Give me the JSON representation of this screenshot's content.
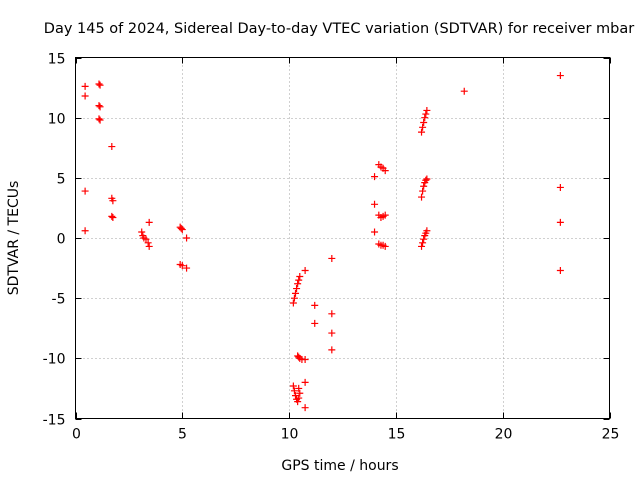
{
  "chart_data": {
    "type": "scatter",
    "title": "Day 145 of 2024, Sidereal Day-to-day VTEC variation (SDTVAR) for receiver mbar",
    "xlabel": "GPS time / hours",
    "ylabel": "SDTVAR / TECUs",
    "xlim": [
      0,
      25
    ],
    "ylim": [
      -15,
      15
    ],
    "xticks": [
      0,
      5,
      10,
      15,
      20,
      25
    ],
    "yticks": [
      -15,
      -10,
      -5,
      0,
      5,
      10,
      15
    ],
    "xtick_labels": [
      "0",
      "5",
      "10",
      "15",
      "20",
      "25"
    ],
    "ytick_labels": [
      "-15",
      "-10",
      "-5",
      "0",
      "5",
      "10",
      "15"
    ],
    "grid": true,
    "marker": "+",
    "color": "#ff0000",
    "series": [
      {
        "name": "SDTVAR",
        "points": [
          [
            0.45,
            12.6
          ],
          [
            0.45,
            11.8
          ],
          [
            0.45,
            3.9
          ],
          [
            0.45,
            0.6
          ],
          [
            1.1,
            12.8
          ],
          [
            1.15,
            12.7
          ],
          [
            1.1,
            11.0
          ],
          [
            1.15,
            10.9
          ],
          [
            1.1,
            9.9
          ],
          [
            1.15,
            9.8
          ],
          [
            1.7,
            7.6
          ],
          [
            1.7,
            3.3
          ],
          [
            1.75,
            3.1
          ],
          [
            1.7,
            1.8
          ],
          [
            1.75,
            1.7
          ],
          [
            3.1,
            0.5
          ],
          [
            3.15,
            0.2
          ],
          [
            3.2,
            0.0
          ],
          [
            3.3,
            -0.1
          ],
          [
            3.4,
            -0.4
          ],
          [
            3.45,
            1.3
          ],
          [
            3.45,
            -0.7
          ],
          [
            4.9,
            0.9
          ],
          [
            4.95,
            0.8
          ],
          [
            5.0,
            0.7
          ],
          [
            4.9,
            -2.2
          ],
          [
            5.0,
            -2.3
          ],
          [
            5.2,
            0.0
          ],
          [
            5.2,
            -2.5
          ],
          [
            10.2,
            -5.4
          ],
          [
            10.25,
            -5.0
          ],
          [
            10.3,
            -4.6
          ],
          [
            10.35,
            -4.2
          ],
          [
            10.4,
            -3.8
          ],
          [
            10.45,
            -3.5
          ],
          [
            10.5,
            -3.2
          ],
          [
            10.75,
            -2.7
          ],
          [
            10.4,
            -9.8
          ],
          [
            10.45,
            -9.9
          ],
          [
            10.5,
            -10.0
          ],
          [
            10.6,
            -10.1
          ],
          [
            10.75,
            -10.1
          ],
          [
            10.2,
            -12.3
          ],
          [
            10.25,
            -12.7
          ],
          [
            10.3,
            -13.1
          ],
          [
            10.35,
            -13.4
          ],
          [
            10.4,
            -13.6
          ],
          [
            10.45,
            -13.3
          ],
          [
            10.5,
            -12.9
          ],
          [
            10.45,
            -12.5
          ],
          [
            10.75,
            -12.0
          ],
          [
            10.75,
            -14.1
          ],
          [
            11.2,
            -5.6
          ],
          [
            11.2,
            -7.1
          ],
          [
            12.0,
            -1.7
          ],
          [
            12.0,
            -6.3
          ],
          [
            12.0,
            -7.9
          ],
          [
            12.0,
            -9.3
          ],
          [
            14.0,
            5.1
          ],
          [
            14.0,
            2.8
          ],
          [
            14.0,
            0.5
          ],
          [
            14.2,
            6.1
          ],
          [
            14.3,
            5.9
          ],
          [
            14.4,
            5.8
          ],
          [
            14.5,
            5.6
          ],
          [
            14.2,
            1.9
          ],
          [
            14.3,
            1.7
          ],
          [
            14.4,
            1.8
          ],
          [
            14.5,
            1.9
          ],
          [
            14.2,
            -0.5
          ],
          [
            14.3,
            -0.6
          ],
          [
            14.4,
            -0.6
          ],
          [
            14.5,
            -0.7
          ],
          [
            16.2,
            8.8
          ],
          [
            16.25,
            9.2
          ],
          [
            16.3,
            9.6
          ],
          [
            16.35,
            10.0
          ],
          [
            16.4,
            10.3
          ],
          [
            16.45,
            10.6
          ],
          [
            16.2,
            3.4
          ],
          [
            16.25,
            3.9
          ],
          [
            16.3,
            4.3
          ],
          [
            16.35,
            4.6
          ],
          [
            16.4,
            4.8
          ],
          [
            16.45,
            4.9
          ],
          [
            16.2,
            -0.7
          ],
          [
            16.25,
            -0.4
          ],
          [
            16.3,
            -0.1
          ],
          [
            16.35,
            0.2
          ],
          [
            16.4,
            0.4
          ],
          [
            16.45,
            0.6
          ],
          [
            18.2,
            12.2
          ],
          [
            22.7,
            13.5
          ],
          [
            22.7,
            4.2
          ],
          [
            22.7,
            1.3
          ],
          [
            22.7,
            -2.7
          ]
        ]
      }
    ]
  }
}
